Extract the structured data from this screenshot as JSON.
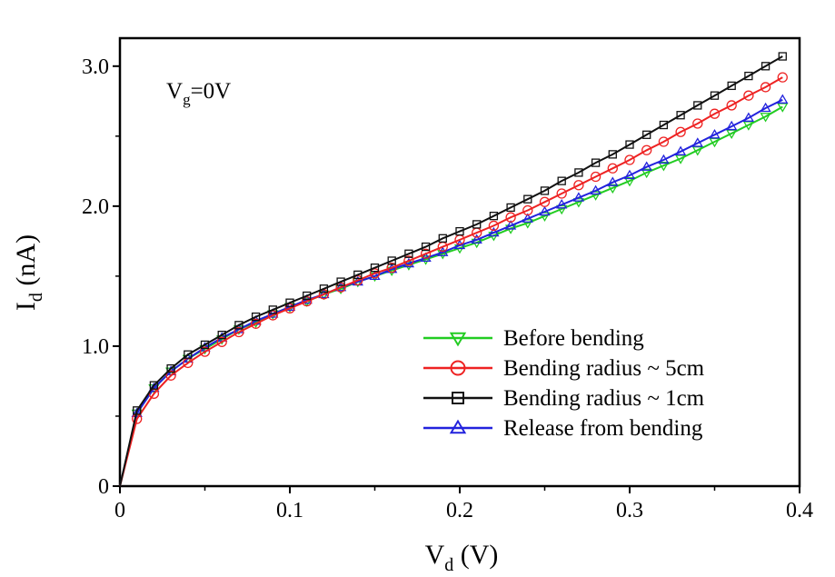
{
  "chart_data": {
    "type": "line",
    "title": "",
    "xlabel": {
      "main": "V",
      "sub": "d",
      "unit": " (V)"
    },
    "ylabel": {
      "main": "I",
      "sub": "d",
      "unit": " (nA)"
    },
    "xlim": [
      0,
      0.4
    ],
    "ylim": [
      0,
      3.2
    ],
    "x_ticks": [
      0,
      0.1,
      0.2,
      0.3,
      0.4
    ],
    "x_tick_labels": [
      "0",
      "0.1",
      "0.2",
      "0.3",
      "0.4"
    ],
    "y_ticks": [
      0,
      1.0,
      2.0,
      3.0
    ],
    "y_tick_labels": [
      "0",
      "1.0",
      "2.0",
      "3.0"
    ],
    "grid": false,
    "legend_position": "bottom-right",
    "annotation": {
      "main": "V",
      "sub": "g",
      "rest": "=0V"
    },
    "x": [
      0,
      0.01,
      0.02,
      0.03,
      0.04,
      0.05,
      0.06,
      0.07,
      0.08,
      0.09,
      0.1,
      0.11,
      0.12,
      0.13,
      0.14,
      0.15,
      0.16,
      0.17,
      0.18,
      0.19,
      0.2,
      0.21,
      0.22,
      0.23,
      0.24,
      0.25,
      0.26,
      0.27,
      0.28,
      0.29,
      0.3,
      0.31,
      0.32,
      0.33,
      0.34,
      0.35,
      0.36,
      0.37,
      0.38,
      0.39
    ],
    "series": [
      {
        "name": "Before bending",
        "color": "#22cc22",
        "marker": "triangle-down",
        "values": [
          0.0,
          0.52,
          0.7,
          0.82,
          0.91,
          0.98,
          1.05,
          1.12,
          1.17,
          1.23,
          1.28,
          1.32,
          1.37,
          1.41,
          1.46,
          1.5,
          1.54,
          1.58,
          1.62,
          1.66,
          1.7,
          1.74,
          1.79,
          1.84,
          1.88,
          1.93,
          1.98,
          2.03,
          2.08,
          2.13,
          2.18,
          2.24,
          2.29,
          2.34,
          2.4,
          2.46,
          2.52,
          2.58,
          2.64,
          2.71
        ]
      },
      {
        "name": "Bending radius ~ 5cm",
        "color": "#ee2222",
        "marker": "circle",
        "values": [
          0.0,
          0.48,
          0.66,
          0.79,
          0.88,
          0.96,
          1.03,
          1.1,
          1.16,
          1.22,
          1.27,
          1.32,
          1.37,
          1.42,
          1.47,
          1.52,
          1.56,
          1.61,
          1.66,
          1.71,
          1.76,
          1.81,
          1.86,
          1.92,
          1.97,
          2.03,
          2.09,
          2.15,
          2.21,
          2.27,
          2.33,
          2.4,
          2.46,
          2.53,
          2.59,
          2.66,
          2.72,
          2.79,
          2.85,
          2.92
        ]
      },
      {
        "name": "Bending radius ~ 1cm",
        "color": "#111111",
        "marker": "square",
        "values": [
          0.0,
          0.54,
          0.72,
          0.84,
          0.94,
          1.01,
          1.08,
          1.15,
          1.21,
          1.26,
          1.31,
          1.36,
          1.41,
          1.46,
          1.51,
          1.56,
          1.61,
          1.66,
          1.71,
          1.77,
          1.82,
          1.87,
          1.93,
          1.99,
          2.05,
          2.11,
          2.18,
          2.24,
          2.31,
          2.37,
          2.44,
          2.51,
          2.58,
          2.65,
          2.72,
          2.79,
          2.86,
          2.93,
          3.0,
          3.07
        ]
      },
      {
        "name": "Release from bending",
        "color": "#2222dd",
        "marker": "triangle-up",
        "values": [
          0.0,
          0.52,
          0.7,
          0.82,
          0.91,
          0.99,
          1.06,
          1.12,
          1.18,
          1.23,
          1.28,
          1.33,
          1.37,
          1.42,
          1.46,
          1.5,
          1.55,
          1.59,
          1.63,
          1.67,
          1.72,
          1.76,
          1.81,
          1.86,
          1.91,
          1.96,
          2.01,
          2.06,
          2.11,
          2.17,
          2.22,
          2.28,
          2.33,
          2.39,
          2.45,
          2.51,
          2.57,
          2.63,
          2.7,
          2.76
        ]
      }
    ]
  }
}
